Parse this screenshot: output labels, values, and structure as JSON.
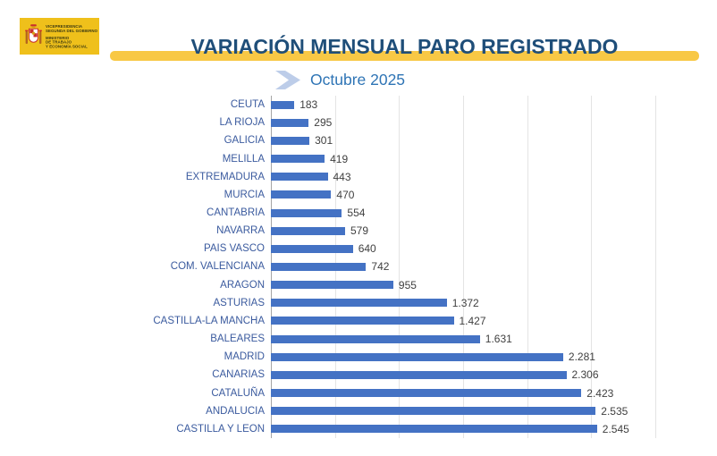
{
  "logo": {
    "agency_lines": [
      "VICEPRESIDENCIA",
      "SEGUNDA DEL GOBIERNO"
    ],
    "ministry_lines": [
      "MINISTERIO",
      "DE TRABAJO",
      "Y ECONOMÍA SOCIAL"
    ]
  },
  "header": {
    "title": "VARIACIÓN MENSUAL PARO REGISTRADO",
    "subtitle": "Octubre 2025"
  },
  "chart_data": {
    "type": "bar",
    "orientation": "horizontal",
    "title": "VARIACIÓN MENSUAL PARO REGISTRADO",
    "subtitle": "Octubre 2025",
    "categories": [
      "CEUTA",
      "LA RIOJA",
      "GALICIA",
      "MELILLA",
      "EXTREMADURA",
      "MURCIA",
      "CANTABRIA",
      "NAVARRA",
      "PAIS VASCO",
      "COM. VALENCIANA",
      "ARAGON",
      "ASTURIAS",
      "CASTILLA-LA MANCHA",
      "BALEARES",
      "MADRID",
      "CANARIAS",
      "CATALUÑA",
      "ANDALUCIA",
      "CASTILLA Y LEON"
    ],
    "values": [
      183,
      295,
      301,
      419,
      443,
      470,
      554,
      579,
      640,
      742,
      955,
      1372,
      1427,
      1631,
      2281,
      2306,
      2423,
      2535,
      2545
    ],
    "value_labels": [
      "183",
      "295",
      "301",
      "419",
      "443",
      "470",
      "554",
      "579",
      "640",
      "742",
      "955",
      "1.372",
      "1.427",
      "1.631",
      "2.281",
      "2.306",
      "2.423",
      "2.535",
      "2.545"
    ],
    "xlabel": "",
    "ylabel": "",
    "xlim": [
      0,
      3000
    ],
    "gridline_step": 500,
    "grid": true,
    "legend": false,
    "sort_order": "ascending"
  },
  "colors": {
    "bar": "#4472C4",
    "category_label": "#3A5A9E",
    "value_label": "#404040",
    "axis_line": "#A6A6A6",
    "gridline": "#E4E4E4",
    "title": "#1F4E79",
    "subtitle": "#2E74B5",
    "band": "#F8C845",
    "logo_background": "#EFC01B",
    "chevron": "#BDCDE9"
  }
}
